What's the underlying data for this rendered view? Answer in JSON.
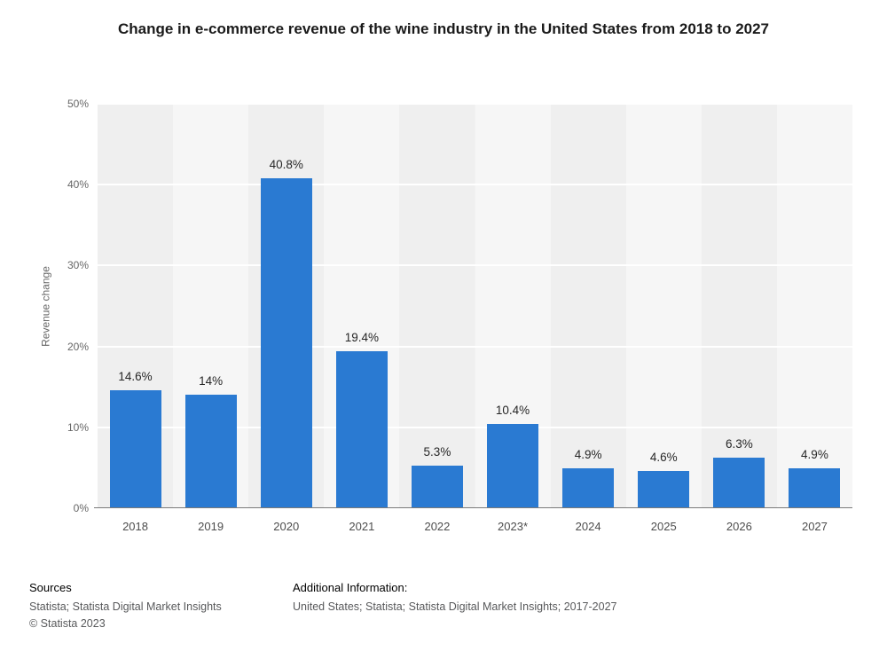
{
  "chart_data": {
    "type": "bar",
    "title": "Change in e-commerce revenue of the wine industry in the United States from 2018 to 2027",
    "categories": [
      "2018",
      "2019",
      "2020",
      "2021",
      "2022",
      "2023*",
      "2024",
      "2025",
      "2026",
      "2027"
    ],
    "values": [
      14.6,
      14,
      40.8,
      19.4,
      5.3,
      10.4,
      4.9,
      4.6,
      6.3,
      4.9
    ],
    "value_labels": [
      "14.6%",
      "14%",
      "40.8%",
      "19.4%",
      "5.3%",
      "10.4%",
      "4.9%",
      "4.6%",
      "6.3%",
      "4.9%"
    ],
    "xlabel": "",
    "ylabel": "Revenue change",
    "ylim": [
      0,
      50
    ],
    "yticks": [
      0,
      10,
      20,
      30,
      40,
      50
    ],
    "ytick_labels": [
      "0%",
      "10%",
      "20%",
      "30%",
      "40%",
      "50%"
    ],
    "grid": "horizontal white gridlines on light-gray striped plot background",
    "legend": "none",
    "bar_color": "#2a7ad2"
  },
  "footer": {
    "sources_heading": "Sources",
    "sources_line": "Statista; Statista Digital Market Insights",
    "copyright": "© Statista 2023",
    "additional_heading": "Additional Information:",
    "additional_line": "United States; Statista; Statista Digital Market Insights; 2017-2027"
  }
}
